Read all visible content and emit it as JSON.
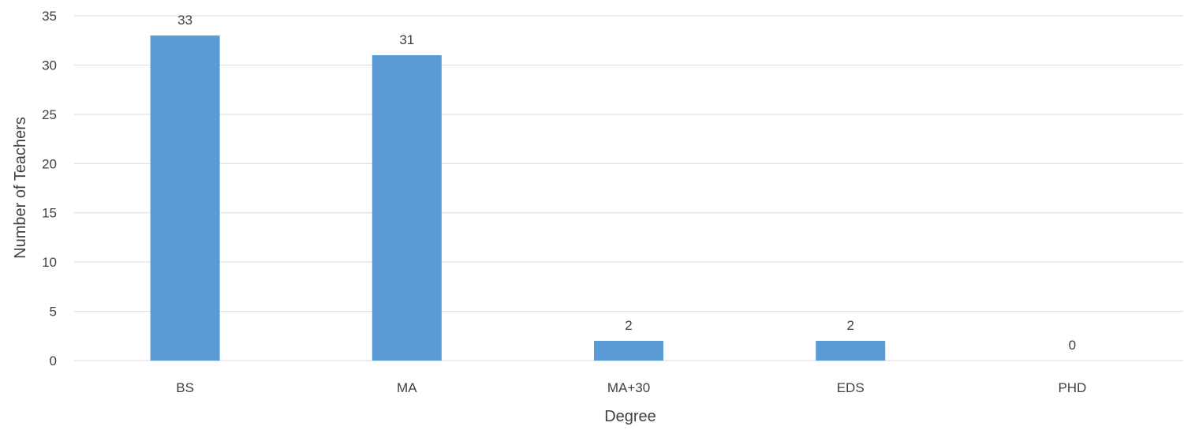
{
  "chart_data": {
    "type": "bar",
    "categories": [
      "BS",
      "MA",
      "MA+30",
      "EDS",
      "PHD"
    ],
    "values": [
      33,
      31,
      2,
      2,
      0
    ],
    "title": "",
    "xlabel": "Degree",
    "ylabel": "Number of Teachers",
    "ylim": [
      0,
      35
    ],
    "yticks": [
      0,
      5,
      10,
      15,
      20,
      25,
      30,
      35
    ],
    "grid": true,
    "legend": "none",
    "bar_color": "#5b9bd5",
    "data_labels": true
  }
}
